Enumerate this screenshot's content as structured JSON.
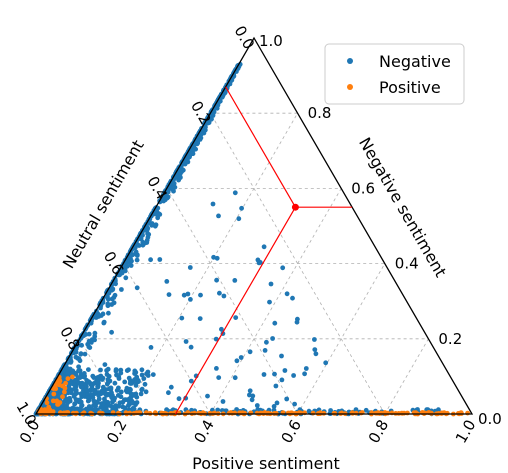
{
  "chart_data": {
    "type": "scatter",
    "subtype": "ternary",
    "axes": {
      "bottom": {
        "label": "Positive sentiment",
        "ticks": [
          "0.0",
          "0.2",
          "0.4",
          "0.6",
          "0.8",
          "1.0"
        ]
      },
      "right": {
        "label": "Negative sentiment",
        "ticks": [
          "0.0",
          "0.2",
          "0.4",
          "0.6",
          "0.8",
          "1.0"
        ]
      },
      "left": {
        "label": "Neutral sentiment",
        "ticks": [
          "0.0",
          "0.2",
          "0.4",
          "0.6",
          "0.8",
          "1.0"
        ]
      }
    },
    "grid": true,
    "legend": {
      "position": "top-right"
    },
    "series": [
      {
        "name": "Negative",
        "color": "#1f77b4"
      },
      {
        "name": "Positive",
        "color": "#ff7f0e"
      }
    ],
    "highlight_point": {
      "positive": 0.32,
      "negative": 0.55,
      "neutral": 0.13,
      "color": "#ff0000"
    }
  }
}
